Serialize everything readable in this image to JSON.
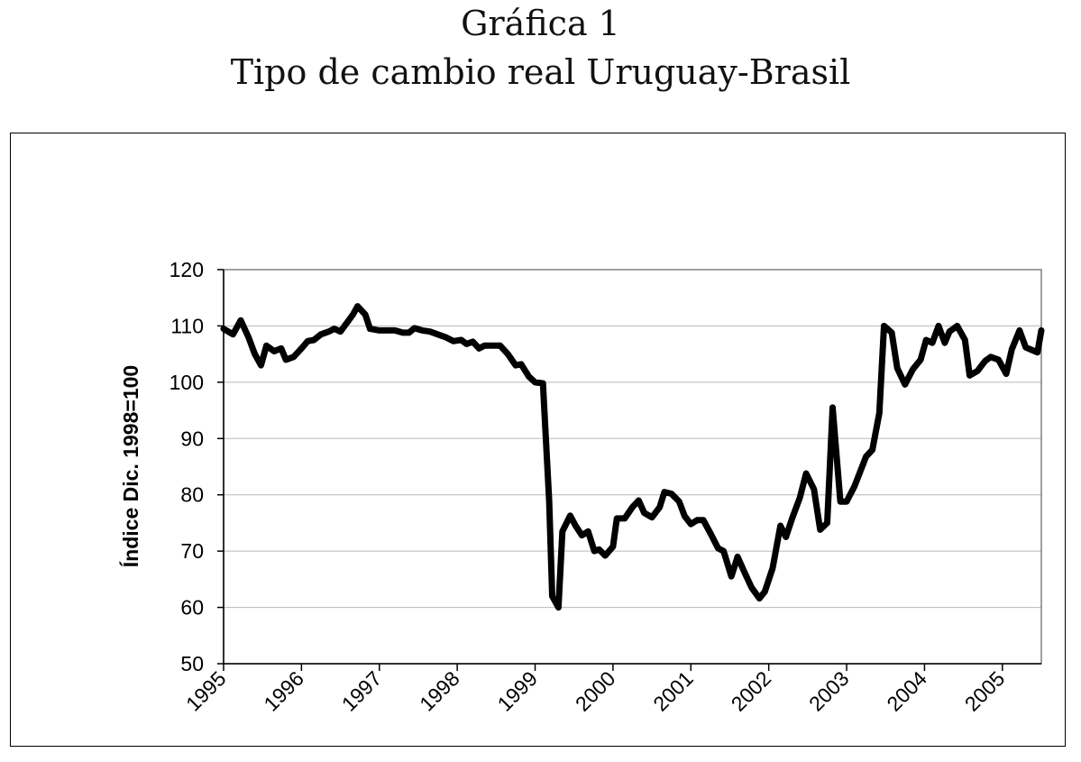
{
  "chart_data": {
    "type": "line",
    "title": "Gráfica 1",
    "subtitle": "Tipo de cambio real Uruguay-Brasil",
    "xlabel": "",
    "ylabel": "Índice Dic. 1998=100",
    "xlim": [
      1995,
      2005.5
    ],
    "ylim": [
      50,
      120
    ],
    "yticks": [
      50,
      60,
      70,
      80,
      90,
      100,
      110,
      120
    ],
    "xticks": [
      "1995",
      "1996",
      "1997",
      "1998",
      "1999",
      "2000",
      "2001",
      "2002",
      "2003",
      "2004",
      "2005"
    ],
    "grid": true,
    "legend": "none",
    "series": [
      {
        "color": "#000000",
        "points": [
          [
            1995.0,
            109.5
          ],
          [
            1995.12,
            108.5
          ],
          [
            1995.22,
            111.0
          ],
          [
            1995.32,
            108.0
          ],
          [
            1995.4,
            105.0
          ],
          [
            1995.48,
            103.0
          ],
          [
            1995.55,
            106.5
          ],
          [
            1995.65,
            105.5
          ],
          [
            1995.74,
            106.0
          ],
          [
            1995.8,
            104.0
          ],
          [
            1995.9,
            104.5
          ],
          [
            1996.0,
            106.0
          ],
          [
            1996.08,
            107.3
          ],
          [
            1996.16,
            107.5
          ],
          [
            1996.25,
            108.5
          ],
          [
            1996.35,
            109.0
          ],
          [
            1996.42,
            109.5
          ],
          [
            1996.5,
            109.0
          ],
          [
            1996.58,
            110.5
          ],
          [
            1996.66,
            112.0
          ],
          [
            1996.72,
            113.5
          ],
          [
            1996.82,
            112.0
          ],
          [
            1996.88,
            109.5
          ],
          [
            1997.0,
            109.2
          ],
          [
            1997.1,
            109.2
          ],
          [
            1997.2,
            109.2
          ],
          [
            1997.3,
            108.8
          ],
          [
            1997.38,
            108.8
          ],
          [
            1997.45,
            109.6
          ],
          [
            1997.55,
            109.2
          ],
          [
            1997.65,
            109.0
          ],
          [
            1997.75,
            108.5
          ],
          [
            1997.85,
            108.0
          ],
          [
            1997.95,
            107.3
          ],
          [
            1998.05,
            107.5
          ],
          [
            1998.12,
            106.8
          ],
          [
            1998.2,
            107.2
          ],
          [
            1998.28,
            106.0
          ],
          [
            1998.35,
            106.5
          ],
          [
            1998.45,
            106.5
          ],
          [
            1998.55,
            106.5
          ],
          [
            1998.65,
            105.0
          ],
          [
            1998.75,
            103.0
          ],
          [
            1998.82,
            103.2
          ],
          [
            1998.92,
            101.0
          ],
          [
            1999.0,
            100.0
          ],
          [
            1999.1,
            99.8
          ],
          [
            1999.18,
            79.0
          ],
          [
            1999.22,
            62.0
          ],
          [
            1999.3,
            60.0
          ],
          [
            1999.35,
            73.5
          ],
          [
            1999.45,
            76.3
          ],
          [
            1999.52,
            74.5
          ],
          [
            1999.6,
            72.8
          ],
          [
            1999.68,
            73.5
          ],
          [
            1999.76,
            70.0
          ],
          [
            1999.82,
            70.3
          ],
          [
            1999.9,
            69.2
          ],
          [
            2000.0,
            70.8
          ],
          [
            2000.05,
            75.8
          ],
          [
            2000.15,
            75.8
          ],
          [
            2000.25,
            77.8
          ],
          [
            2000.33,
            79.0
          ],
          [
            2000.4,
            76.8
          ],
          [
            2000.5,
            76.0
          ],
          [
            2000.6,
            77.8
          ],
          [
            2000.66,
            80.5
          ],
          [
            2000.75,
            80.2
          ],
          [
            2000.85,
            78.8
          ],
          [
            2000.92,
            76.2
          ],
          [
            2001.0,
            74.8
          ],
          [
            2001.08,
            75.5
          ],
          [
            2001.16,
            75.5
          ],
          [
            2001.25,
            73.2
          ],
          [
            2001.35,
            70.5
          ],
          [
            2001.42,
            70.0
          ],
          [
            2001.52,
            65.5
          ],
          [
            2001.6,
            69.0
          ],
          [
            2001.68,
            66.5
          ],
          [
            2001.78,
            63.5
          ],
          [
            2001.88,
            61.6
          ],
          [
            2001.95,
            62.8
          ],
          [
            2002.05,
            67.0
          ],
          [
            2002.15,
            74.5
          ],
          [
            2002.22,
            72.5
          ],
          [
            2002.3,
            75.8
          ],
          [
            2002.4,
            79.5
          ],
          [
            2002.48,
            83.8
          ],
          [
            2002.58,
            81.0
          ],
          [
            2002.66,
            73.8
          ],
          [
            2002.75,
            75.0
          ],
          [
            2002.82,
            95.5
          ],
          [
            2002.92,
            78.8
          ],
          [
            2003.0,
            78.8
          ],
          [
            2003.1,
            81.5
          ],
          [
            2003.25,
            86.8
          ],
          [
            2003.33,
            88.0
          ],
          [
            2003.42,
            94.5
          ],
          [
            2003.48,
            110.0
          ],
          [
            2003.58,
            108.8
          ],
          [
            2003.65,
            102.5
          ],
          [
            2003.75,
            99.6
          ],
          [
            2003.85,
            102.3
          ],
          [
            2003.95,
            104.0
          ],
          [
            2004.02,
            107.5
          ],
          [
            2004.1,
            107.0
          ],
          [
            2004.18,
            110.0
          ],
          [
            2004.26,
            107.0
          ],
          [
            2004.32,
            109.0
          ],
          [
            2004.42,
            110.0
          ],
          [
            2004.52,
            107.5
          ],
          [
            2004.58,
            101.2
          ],
          [
            2004.68,
            102.0
          ],
          [
            2004.78,
            103.8
          ],
          [
            2004.85,
            104.5
          ],
          [
            2004.95,
            104.0
          ],
          [
            2005.05,
            101.5
          ],
          [
            2005.12,
            105.8
          ],
          [
            2005.22,
            109.2
          ],
          [
            2005.3,
            106.2
          ],
          [
            2005.45,
            105.3
          ],
          [
            2005.5,
            109.2
          ]
        ]
      }
    ]
  }
}
